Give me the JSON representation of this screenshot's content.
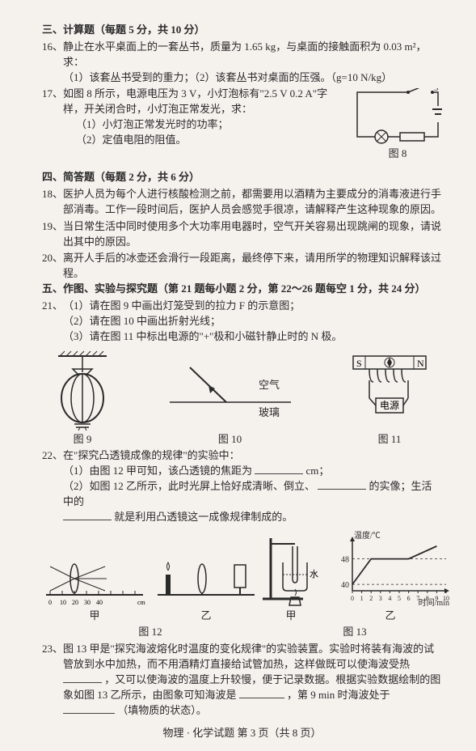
{
  "section3": {
    "heading": "三、计算题（每题 5 分，共 10 分）"
  },
  "q16": {
    "num": "16、",
    "body": "静止在水平桌面上的一套丛书，质量为 1.65 kg，与桌面的接触面积为 0.03 m²，求：",
    "sub1": "（1）该套丛书受到的重力；（2）该套丛书对桌面的压强。（g=10 N/kg）"
  },
  "q17": {
    "num": "17、",
    "body": "如图 8 所示，电源电压为 3 V，小灯泡标有\"2.5 V  0.2 A\"字样，开关闭合时，小灯泡正常发光，求：",
    "sub1": "（1）小灯泡正常发光时的功率；",
    "sub2": "（2）定值电阻的阻值。",
    "fig_label": "图 8"
  },
  "section4": {
    "heading": "四、简答题（每题 2 分，共 6 分）"
  },
  "q18": {
    "num": "18、",
    "body": "医护人员为每个人进行核酸检测之前，都需要用以酒精为主要成分的消毒液进行手部消毒。工作一段时间后，医护人员会感觉手很凉，请解释产生这种现象的原因。"
  },
  "q19": {
    "num": "19、",
    "body": "当日常生活中同时使用多个大功率用电器时，空气开关容易出现跳闸的现象，请说出其中的原因。"
  },
  "q20": {
    "num": "20、",
    "body": "离开人手后的冰壶还会滑行一段距离，最终停下来，请用所学的物理知识解释该过程。"
  },
  "section5": {
    "heading": "五、作图、实验与探究题（第 21 题每小题 2 分，第 22～26 题每空 1 分，共 24 分）"
  },
  "q21": {
    "num": "21、",
    "sub1": "（1）请在图 9 中画出灯笼受到的拉力 F 的示意图；",
    "sub2": "（2）请在图 10 中画出折射光线；",
    "sub3": "（3）请在图 11 中标出电源的\"+\"极和小磁针静止时的 N 极。"
  },
  "fig9_label": "图 9",
  "fig10_label": "图 10",
  "fig10_air": "空气",
  "fig10_glass": "玻璃",
  "fig11_label": "图 11",
  "fig11_s": "S",
  "fig11_n": "N",
  "fig11_src": "电源",
  "q22": {
    "num": "22、",
    "body": "在\"探究凸透镜成像的规律\"的实验中：",
    "sub1a": "（1）由图 12 甲可知，该凸透镜的焦距为",
    "sub1b": "cm；",
    "sub2a": "（2）如图 12 乙所示，此时光屏上恰好成清晰、倒立、",
    "sub2b": "的实像；生活中的",
    "sub2c": "就是利用凸透镜这一成像规律制成的。",
    "blank_w": 60
  },
  "fig12_jia": "甲",
  "fig12_yi": "乙",
  "fig12_label": "图 12",
  "fig13_jia": "甲",
  "fig13_yi": "乙",
  "fig13_label": "图 13",
  "fig13_water": "水",
  "chart": {
    "y_label": "温度/℃",
    "x_label": "时间/min",
    "y_ticks": [
      "48",
      "40"
    ],
    "x_ticks": [
      "0",
      "1",
      "2",
      "3",
      "4",
      "5",
      "6",
      "7",
      "8",
      "9",
      "10"
    ],
    "y_tick_vals": [
      48,
      40
    ],
    "y_range": [
      38,
      54
    ],
    "x_range": [
      0,
      10
    ],
    "line": [
      [
        0,
        40
      ],
      [
        2,
        48
      ],
      [
        6,
        48
      ],
      [
        9,
        52
      ]
    ],
    "line_color": "#2a2a2a",
    "bg": "#f5f1ed"
  },
  "q23": {
    "num": "23、",
    "body_a": "图 13 甲是\"探究海波熔化时温度的变化规律\"的实验装置。实验时将装有海波的试管放到水中加热，而不用酒精灯直接给试管加热，这样做既可以使海波受热",
    "body_b": "，又可以使海波的温度上升较慢，便于记录数据。根据实验数据绘制的图象如图 13 乙所示，由图象可知海波是",
    "body_c": "，第 9 min 时海波处于",
    "body_d": "（填物质的状态）。",
    "blank_w1": 48,
    "blank_w2": 56,
    "blank_w3": 64
  },
  "footer": "物理 · 化学试题  第 3 页（共 8 页）"
}
